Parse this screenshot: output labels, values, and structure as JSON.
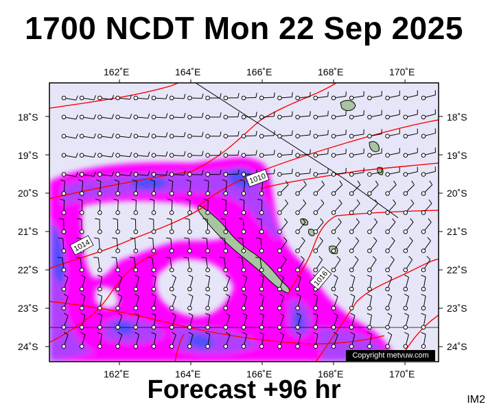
{
  "title": "1700 NCDT Mon 22 Sep 2025",
  "subtitle": "Forecast +96 hr",
  "corner_label": "IM2",
  "copyright": "Copyright metvuw.com",
  "axes": {
    "lon_labels_top": [
      "162˚E",
      "164˚E",
      "166˚E",
      "168˚E",
      "170˚E"
    ],
    "lon_labels_bottom": [
      "162˚E",
      "164˚E",
      "166˚E",
      "168˚E",
      "170˚E"
    ],
    "lat_labels_left": [
      "18˚S",
      "19˚S",
      "20˚S",
      "21˚S",
      "22˚S",
      "23˚S",
      "24˚S"
    ],
    "lat_labels_right": [
      "18˚S",
      "19˚S",
      "20˚S",
      "21˚S",
      "22˚S",
      "23˚S",
      "24˚S"
    ]
  },
  "isobar_labels": [
    "1014",
    "1010",
    "1016"
  ],
  "colors": {
    "ocean": "#e6e6f8",
    "precip_light": "#ff00ff",
    "precip_mid": "#b040ff",
    "precip_heavy": "#4040ff",
    "isobar": "#ff0000",
    "land": "#a8c4a0"
  }
}
